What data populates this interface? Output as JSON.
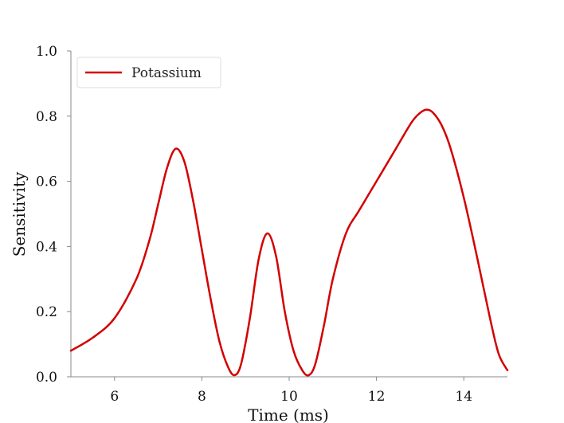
{
  "chart_data": {
    "type": "line",
    "title": "",
    "xlabel": "Time (ms)",
    "ylabel": "Sensitivity",
    "xlim": [
      5,
      15
    ],
    "ylim": [
      0,
      1
    ],
    "xticks": [
      6,
      8,
      10,
      12,
      14
    ],
    "yticks": [
      "0.0",
      "0.2",
      "0.4",
      "0.6",
      "0.8",
      "1.0"
    ],
    "grid": false,
    "legend_position": "top-left",
    "series": [
      {
        "name": "Potassium",
        "color": "#d40000",
        "x": [
          5.0,
          5.5,
          6.0,
          6.5,
          6.8,
          7.0,
          7.2,
          7.4,
          7.6,
          7.8,
          8.0,
          8.2,
          8.4,
          8.6,
          8.75,
          8.9,
          9.1,
          9.3,
          9.5,
          9.7,
          9.9,
          10.1,
          10.3,
          10.45,
          10.6,
          10.8,
          11.0,
          11.3,
          11.6,
          12.0,
          12.4,
          12.8,
          13.0,
          13.15,
          13.3,
          13.5,
          13.7,
          14.0,
          14.3,
          14.6,
          14.8,
          15.0
        ],
        "y": [
          0.08,
          0.12,
          0.18,
          0.3,
          0.42,
          0.53,
          0.64,
          0.7,
          0.66,
          0.54,
          0.39,
          0.24,
          0.11,
          0.03,
          0.005,
          0.04,
          0.18,
          0.36,
          0.44,
          0.37,
          0.2,
          0.08,
          0.02,
          0.005,
          0.04,
          0.16,
          0.3,
          0.44,
          0.51,
          0.6,
          0.69,
          0.78,
          0.81,
          0.82,
          0.81,
          0.77,
          0.7,
          0.55,
          0.37,
          0.18,
          0.07,
          0.02
        ]
      }
    ]
  }
}
